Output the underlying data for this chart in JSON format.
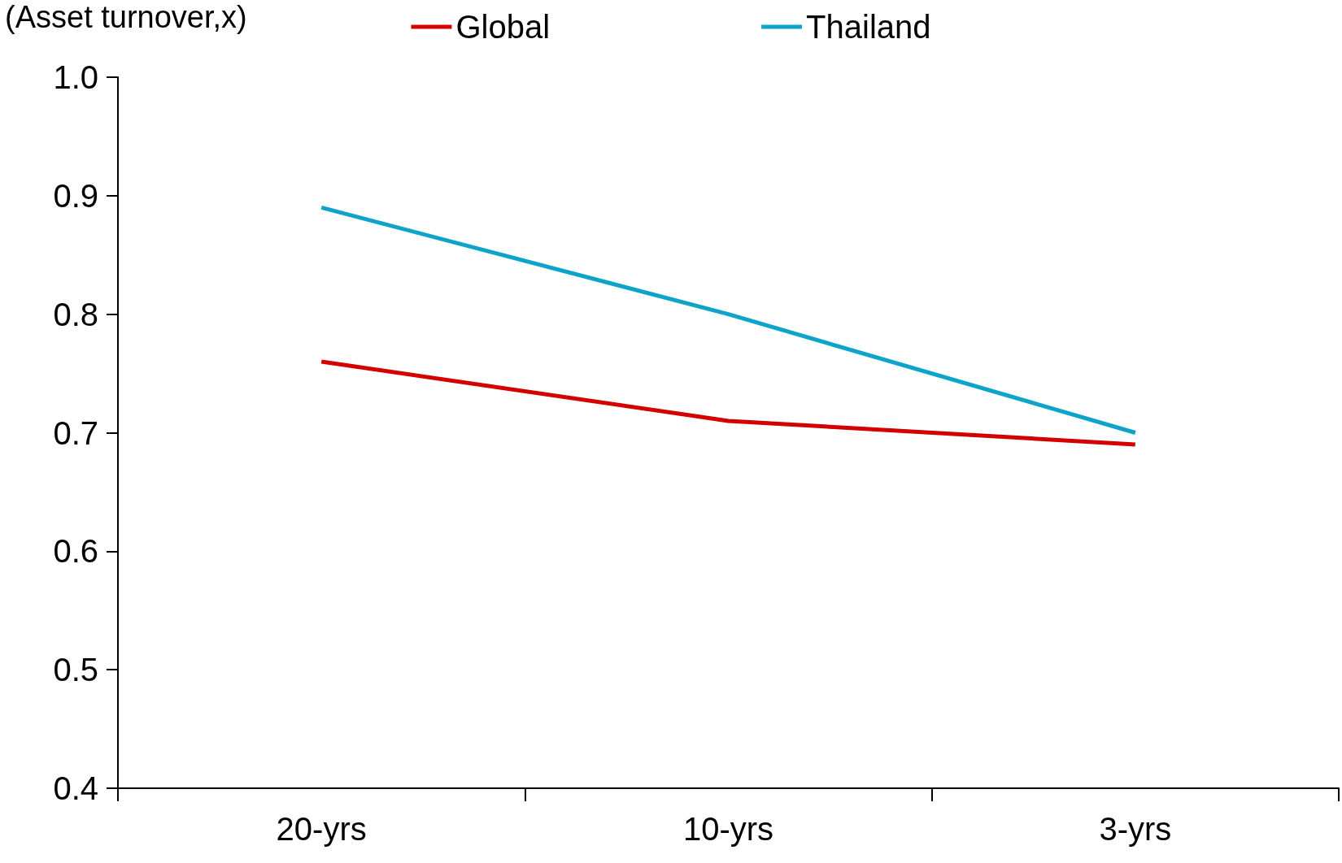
{
  "chart_data": {
    "type": "line",
    "ylabel": "(Asset turnover,x)",
    "categories": [
      "20-yrs",
      "10-yrs",
      "3-yrs"
    ],
    "series": [
      {
        "name": "Global",
        "color": "#d40000",
        "values": [
          0.76,
          0.71,
          0.69
        ]
      },
      {
        "name": "Thailand",
        "color": "#0ea3c9",
        "values": [
          0.89,
          0.8,
          0.7
        ]
      }
    ],
    "ylim": [
      0.4,
      1.0
    ],
    "yticks": [
      {
        "value": 0.4,
        "label": "0.4"
      },
      {
        "value": 0.5,
        "label": "0.5"
      },
      {
        "value": 0.6,
        "label": "0.6"
      },
      {
        "value": 0.7,
        "label": "0.7"
      },
      {
        "value": 0.8,
        "label": "0.8"
      },
      {
        "value": 0.9,
        "label": "0.9"
      },
      {
        "value": 1.0,
        "label": "1.0"
      }
    ],
    "grid": false,
    "legend": "top",
    "marker": "none",
    "line_style": "solid"
  }
}
